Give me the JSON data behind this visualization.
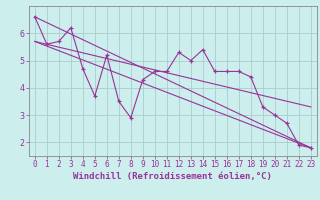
{
  "xlabel": "Windchill (Refroidissement éolien,°C)",
  "bg_color": "#cceeed",
  "grid_color": "#aacccc",
  "line_color": "#993399",
  "spine_color": "#888888",
  "xlim": [
    -0.5,
    23.5
  ],
  "ylim": [
    1.5,
    7.0
  ],
  "yticks": [
    2,
    3,
    4,
    5,
    6
  ],
  "xticks": [
    0,
    1,
    2,
    3,
    4,
    5,
    6,
    7,
    8,
    9,
    10,
    11,
    12,
    13,
    14,
    15,
    16,
    17,
    18,
    19,
    20,
    21,
    22,
    23
  ],
  "series1_x": [
    0,
    1,
    2,
    3,
    4,
    5,
    6,
    7,
    8,
    9,
    10,
    11,
    12,
    13,
    14,
    15,
    16,
    17,
    18,
    19,
    20,
    21,
    22,
    23
  ],
  "series1_y": [
    6.6,
    5.6,
    5.7,
    6.2,
    4.7,
    3.7,
    5.2,
    3.5,
    2.9,
    4.3,
    4.6,
    4.6,
    5.3,
    5.0,
    5.4,
    4.6,
    4.6,
    4.6,
    4.4,
    3.3,
    3.0,
    2.7,
    1.9,
    1.8
  ],
  "line2_x": [
    0,
    23
  ],
  "line2_y": [
    6.6,
    1.8
  ],
  "line3_x": [
    0,
    23
  ],
  "line3_y": [
    5.7,
    1.8
  ],
  "line4_x": [
    0,
    23
  ],
  "line4_y": [
    5.7,
    3.3
  ],
  "xlabel_fontsize": 6.5,
  "tick_fontsize": 5.5
}
